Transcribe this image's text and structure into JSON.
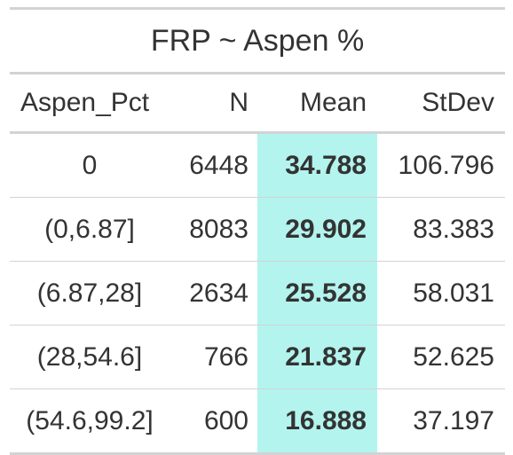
{
  "table": {
    "title": "FRP ~ Aspen %",
    "columns": [
      "Aspen_Pct",
      "N",
      "Mean",
      "StDev"
    ],
    "rows": [
      {
        "aspen_pct": "0",
        "n": "6448",
        "mean": "34.788",
        "stdev": "106.796"
      },
      {
        "aspen_pct": "(0,6.87]",
        "n": "8083",
        "mean": "29.902",
        "stdev": "83.383"
      },
      {
        "aspen_pct": "(6.87,28]",
        "n": "2634",
        "mean": "25.528",
        "stdev": "58.031"
      },
      {
        "aspen_pct": "(28,54.6]",
        "n": "766",
        "mean": "21.837",
        "stdev": "52.625"
      },
      {
        "aspen_pct": "(54.6,99.2]",
        "n": "600",
        "mean": "16.888",
        "stdev": "37.197"
      }
    ],
    "highlight_color": "#b3f4ee",
    "rule_color": "#d3d3d3",
    "text_color": "#333333"
  }
}
